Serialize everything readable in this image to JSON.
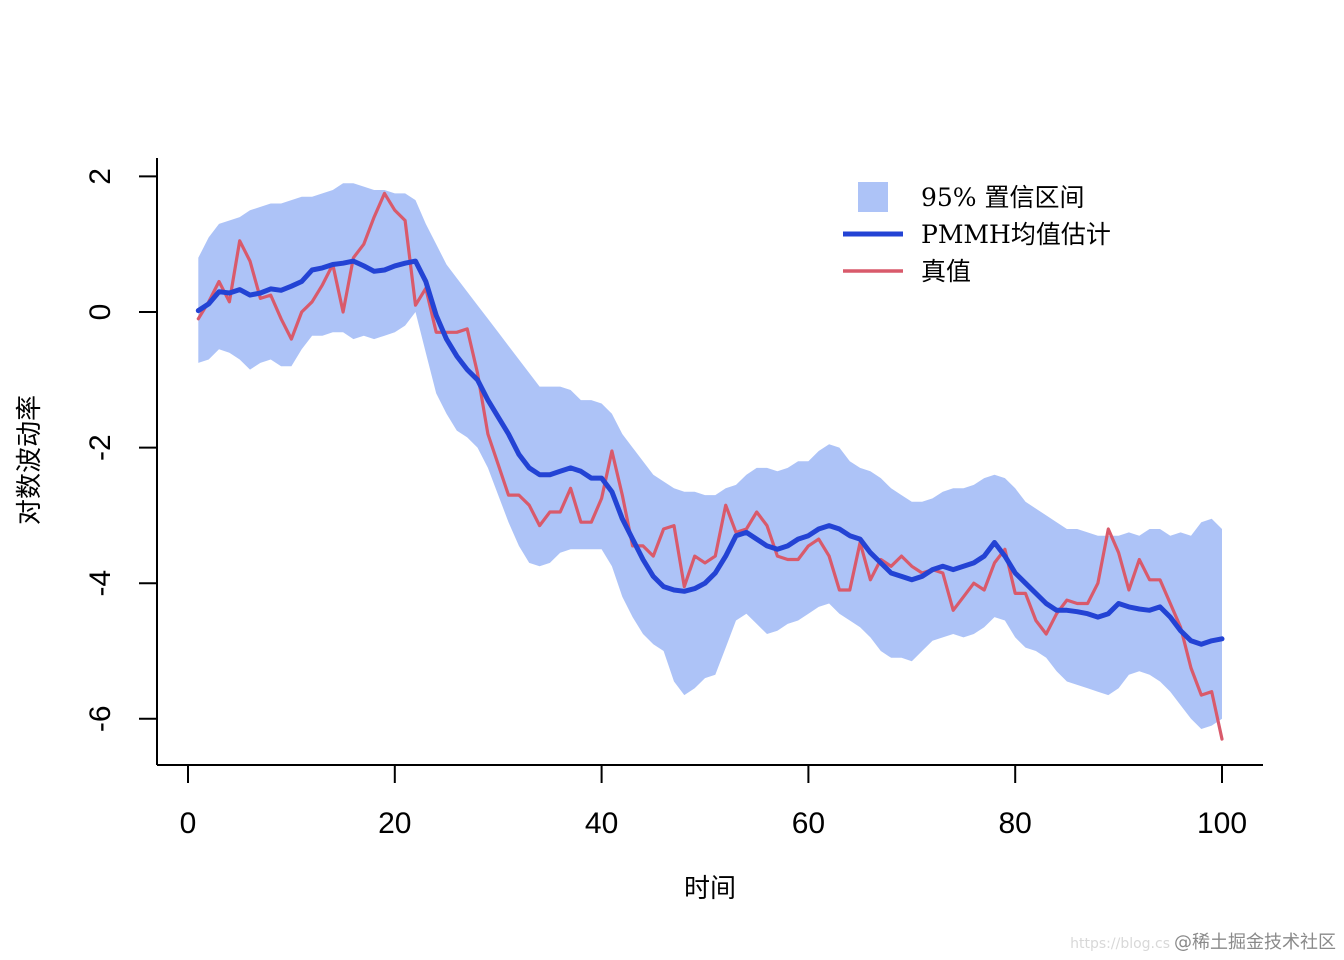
{
  "chart_data": {
    "type": "line",
    "xlabel": "时间",
    "ylabel": "对数波动率",
    "xlim": [
      0,
      100
    ],
    "ylim": [
      -6.7,
      2.3
    ],
    "xticks": [
      0,
      20,
      40,
      60,
      80,
      100
    ],
    "yticks": [
      2,
      0,
      -2,
      -4,
      -6
    ],
    "grid": false,
    "legend_position": "top-right",
    "legend": [
      {
        "label": "95% 置信区间",
        "kind": "band",
        "color": "#adc3f7"
      },
      {
        "label": "PMMH均值估计",
        "kind": "line",
        "color": "#2343d4"
      },
      {
        "label": "真值",
        "kind": "line",
        "color": "#d95a6b"
      }
    ],
    "x": [
      1,
      2,
      3,
      4,
      5,
      6,
      7,
      8,
      9,
      10,
      11,
      12,
      13,
      14,
      15,
      16,
      17,
      18,
      19,
      20,
      21,
      22,
      23,
      24,
      25,
      26,
      27,
      28,
      29,
      30,
      31,
      32,
      33,
      34,
      35,
      36,
      37,
      38,
      39,
      40,
      41,
      42,
      43,
      44,
      45,
      46,
      47,
      48,
      49,
      50,
      51,
      52,
      53,
      54,
      55,
      56,
      57,
      58,
      59,
      60,
      61,
      62,
      63,
      64,
      65,
      66,
      67,
      68,
      69,
      70,
      71,
      72,
      73,
      74,
      75,
      76,
      77,
      78,
      79,
      80,
      81,
      82,
      83,
      84,
      85,
      86,
      87,
      88,
      89,
      90,
      91,
      92,
      93,
      94,
      95,
      96,
      97,
      98,
      99,
      100
    ],
    "series": [
      {
        "name": "95% 置信区间",
        "type": "band",
        "color": "#adc3f7",
        "upper": [
          0.8,
          1.1,
          1.3,
          1.35,
          1.4,
          1.5,
          1.55,
          1.6,
          1.6,
          1.65,
          1.7,
          1.7,
          1.75,
          1.8,
          1.9,
          1.9,
          1.85,
          1.8,
          1.8,
          1.75,
          1.75,
          1.65,
          1.3,
          1.0,
          0.7,
          0.5,
          0.3,
          0.1,
          -0.1,
          -0.3,
          -0.5,
          -0.7,
          -0.9,
          -1.1,
          -1.1,
          -1.1,
          -1.15,
          -1.3,
          -1.3,
          -1.35,
          -1.5,
          -1.8,
          -2.0,
          -2.2,
          -2.4,
          -2.5,
          -2.6,
          -2.65,
          -2.65,
          -2.7,
          -2.7,
          -2.6,
          -2.55,
          -2.4,
          -2.3,
          -2.3,
          -2.35,
          -2.3,
          -2.2,
          -2.2,
          -2.05,
          -1.95,
          -2.0,
          -2.2,
          -2.3,
          -2.35,
          -2.45,
          -2.6,
          -2.7,
          -2.8,
          -2.8,
          -2.75,
          -2.65,
          -2.6,
          -2.6,
          -2.55,
          -2.45,
          -2.4,
          -2.45,
          -2.6,
          -2.8,
          -2.9,
          -3.0,
          -3.1,
          -3.2,
          -3.2,
          -3.25,
          -3.3,
          -3.3,
          -3.3,
          -3.25,
          -3.3,
          -3.2,
          -3.2,
          -3.3,
          -3.25,
          -3.3,
          -3.1,
          -3.05,
          -3.2
        ],
        "lower": [
          -0.75,
          -0.7,
          -0.55,
          -0.6,
          -0.7,
          -0.85,
          -0.75,
          -0.7,
          -0.8,
          -0.8,
          -0.55,
          -0.35,
          -0.35,
          -0.3,
          -0.3,
          -0.4,
          -0.35,
          -0.4,
          -0.35,
          -0.3,
          -0.2,
          0.0,
          -0.6,
          -1.2,
          -1.5,
          -1.75,
          -1.85,
          -2.0,
          -2.3,
          -2.7,
          -3.1,
          -3.45,
          -3.7,
          -3.75,
          -3.7,
          -3.55,
          -3.5,
          -3.5,
          -3.5,
          -3.5,
          -3.75,
          -4.2,
          -4.5,
          -4.75,
          -4.9,
          -5.0,
          -5.45,
          -5.65,
          -5.55,
          -5.4,
          -5.35,
          -4.95,
          -4.55,
          -4.45,
          -4.6,
          -4.75,
          -4.7,
          -4.6,
          -4.55,
          -4.45,
          -4.35,
          -4.3,
          -4.45,
          -4.55,
          -4.65,
          -4.8,
          -5.0,
          -5.1,
          -5.1,
          -5.15,
          -5.0,
          -4.85,
          -4.8,
          -4.75,
          -4.8,
          -4.75,
          -4.65,
          -4.5,
          -4.55,
          -4.8,
          -4.95,
          -5.0,
          -5.1,
          -5.3,
          -5.45,
          -5.5,
          -5.55,
          -5.6,
          -5.65,
          -5.55,
          -5.35,
          -5.3,
          -5.35,
          -5.45,
          -5.6,
          -5.8,
          -6.0,
          -6.15,
          -6.1,
          -6.0
        ]
      },
      {
        "name": "PMMH均值估计",
        "type": "line",
        "color": "#2343d4",
        "values": [
          0.02,
          0.12,
          0.3,
          0.28,
          0.33,
          0.25,
          0.28,
          0.34,
          0.32,
          0.38,
          0.45,
          0.62,
          0.65,
          0.7,
          0.72,
          0.75,
          0.68,
          0.6,
          0.62,
          0.68,
          0.72,
          0.75,
          0.45,
          -0.05,
          -0.4,
          -0.65,
          -0.85,
          -1.0,
          -1.3,
          -1.55,
          -1.8,
          -2.1,
          -2.3,
          -2.4,
          -2.4,
          -2.35,
          -2.3,
          -2.35,
          -2.45,
          -2.45,
          -2.65,
          -3.05,
          -3.35,
          -3.65,
          -3.9,
          -4.05,
          -4.1,
          -4.12,
          -4.08,
          -4.0,
          -3.85,
          -3.6,
          -3.3,
          -3.25,
          -3.35,
          -3.45,
          -3.5,
          -3.45,
          -3.35,
          -3.3,
          -3.2,
          -3.15,
          -3.2,
          -3.3,
          -3.35,
          -3.55,
          -3.7,
          -3.85,
          -3.9,
          -3.95,
          -3.9,
          -3.8,
          -3.75,
          -3.8,
          -3.75,
          -3.7,
          -3.6,
          -3.4,
          -3.6,
          -3.85,
          -4.0,
          -4.15,
          -4.3,
          -4.4,
          -4.4,
          -4.42,
          -4.45,
          -4.5,
          -4.45,
          -4.3,
          -4.35,
          -4.38,
          -4.4,
          -4.35,
          -4.5,
          -4.7,
          -4.85,
          -4.9,
          -4.85,
          -4.82
        ]
      },
      {
        "name": "真值",
        "type": "line",
        "color": "#d95a6b",
        "values": [
          -0.1,
          0.15,
          0.45,
          0.15,
          1.05,
          0.75,
          0.2,
          0.25,
          -0.1,
          -0.4,
          0.0,
          0.15,
          0.4,
          0.7,
          0.0,
          0.8,
          1.0,
          1.4,
          1.75,
          1.5,
          1.35,
          0.1,
          0.35,
          -0.3,
          -0.3,
          -0.3,
          -0.25,
          -0.9,
          -1.8,
          -2.25,
          -2.7,
          -2.7,
          -2.85,
          -3.15,
          -2.95,
          -2.95,
          -2.6,
          -3.1,
          -3.1,
          -2.75,
          -2.05,
          -2.7,
          -3.45,
          -3.45,
          -3.6,
          -3.2,
          -3.15,
          -4.05,
          -3.6,
          -3.7,
          -3.6,
          -2.85,
          -3.25,
          -3.2,
          -2.95,
          -3.15,
          -3.6,
          -3.65,
          -3.65,
          -3.45,
          -3.35,
          -3.6,
          -4.1,
          -4.1,
          -3.4,
          -3.95,
          -3.65,
          -3.75,
          -3.6,
          -3.75,
          -3.85,
          -3.8,
          -3.85,
          -4.4,
          -4.2,
          -4.0,
          -4.1,
          -3.7,
          -3.5,
          -4.15,
          -4.15,
          -4.55,
          -4.75,
          -4.45,
          -4.25,
          -4.3,
          -4.3,
          -4.0,
          -3.2,
          -3.55,
          -4.1,
          -3.65,
          -3.95,
          -3.95,
          -4.3,
          -4.65,
          -5.25,
          -5.65,
          -5.6,
          -6.3
        ]
      }
    ]
  },
  "watermark": {
    "url": "https://blog.cs",
    "text": "@稀土掘金技术社区"
  }
}
